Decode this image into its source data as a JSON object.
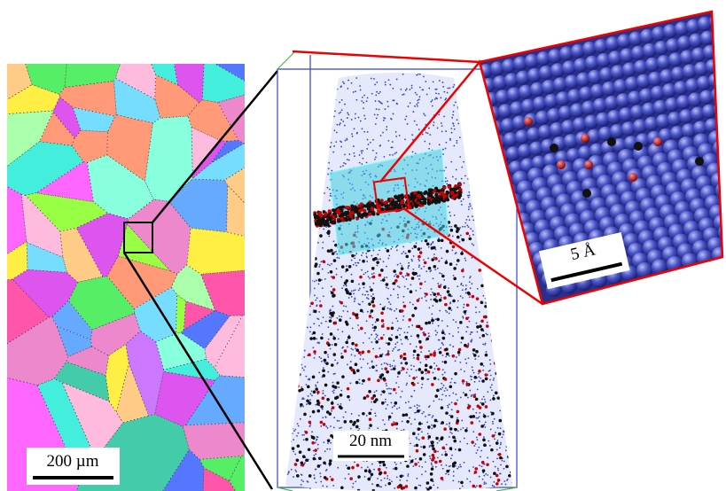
{
  "panels": {
    "ebsd": {
      "scale_bar": "200 µm"
    },
    "apt": {
      "scale_bar": "20 nm"
    },
    "inset": {
      "scale_bar": "5 Å"
    }
  }
}
